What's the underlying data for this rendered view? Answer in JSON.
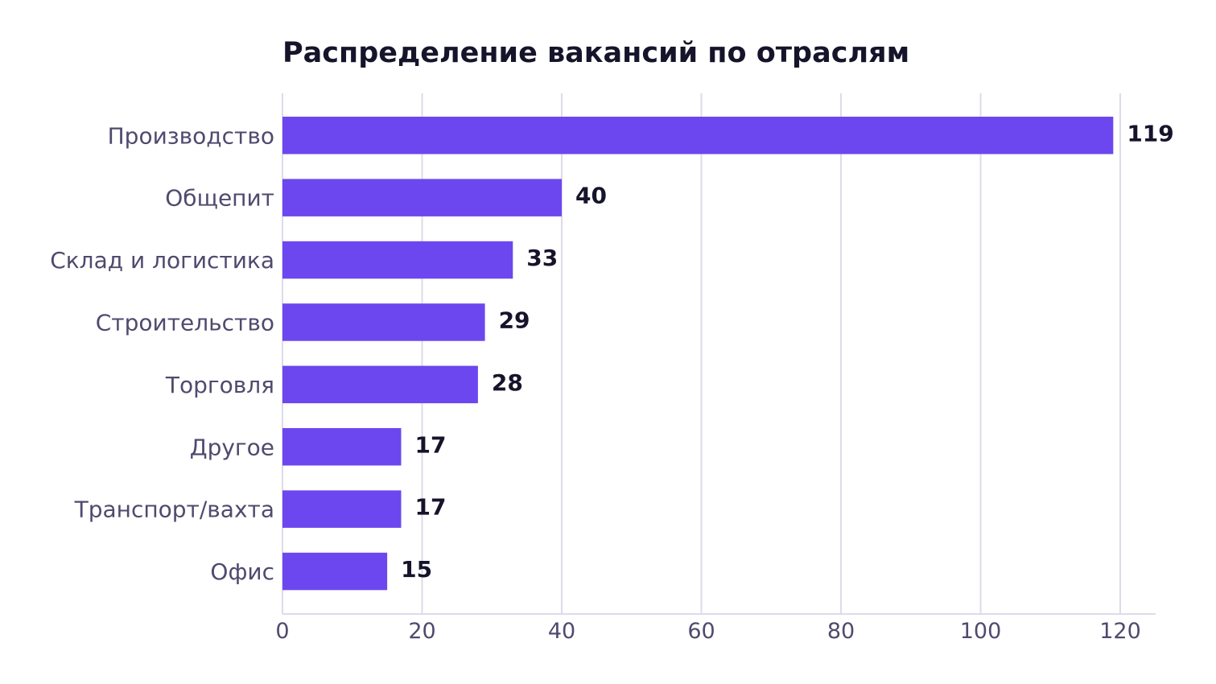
{
  "colors": {
    "bar": "#6c47ef",
    "title": "#16142b",
    "category_text": "#4f4a6e",
    "tick_text": "#4f4a6e",
    "value_text": "#16142b",
    "grid": "#dddbea",
    "axis": "#dddbea"
  },
  "chart_data": {
    "type": "bar",
    "orientation": "horizontal",
    "title": "Распределение вакансий по отраслям",
    "xlabel": "",
    "ylabel": "",
    "categories": [
      "Производство",
      "Общепит",
      "Склад и логистика",
      "Строительство",
      "Торговля",
      "Другое",
      "Транспорт/вахта",
      "Офис"
    ],
    "values": [
      119,
      40,
      33,
      29,
      28,
      17,
      17,
      15
    ],
    "xlim": [
      0,
      125
    ],
    "xticks": [
      0,
      20,
      40,
      60,
      80,
      100,
      120
    ],
    "grid": "vertical",
    "legend": "none"
  }
}
